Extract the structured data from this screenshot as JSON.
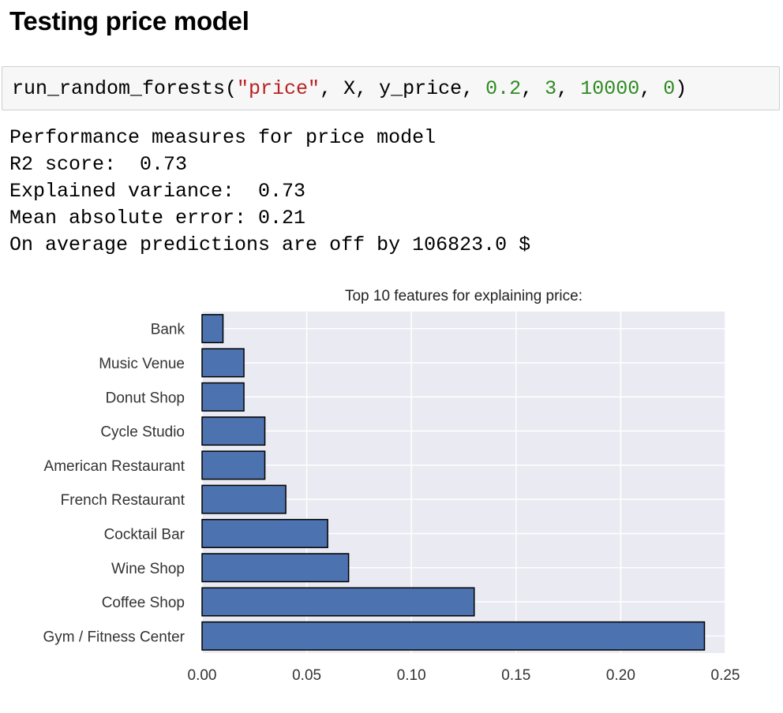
{
  "heading": "Testing price model",
  "code": {
    "tokens": [
      {
        "text": "run_random_forests(",
        "kind": "plain"
      },
      {
        "text": "\"price\"",
        "kind": "str"
      },
      {
        "text": ", X, y_price, ",
        "kind": "plain"
      },
      {
        "text": "0.2",
        "kind": "num"
      },
      {
        "text": ", ",
        "kind": "plain"
      },
      {
        "text": "3",
        "kind": "num"
      },
      {
        "text": ", ",
        "kind": "plain"
      },
      {
        "text": "10000",
        "kind": "num"
      },
      {
        "text": ", ",
        "kind": "plain"
      },
      {
        "text": "0",
        "kind": "num"
      },
      {
        "text": ")",
        "kind": "plain"
      }
    ]
  },
  "output": {
    "lines": [
      "Performance measures for price model",
      "R2 score:  0.73",
      "Explained variance:  0.73",
      "Mean absolute error: 0.21",
      "On average predictions are off by 106823.0 $"
    ]
  },
  "colors": {
    "bar_fill": "#4c72b0",
    "bar_stroke": "#000000",
    "plot_bg": "#eaeaf2",
    "grid": "#ffffff",
    "string": "#ba2121",
    "number": "#2e8b21"
  },
  "chart_data": {
    "type": "bar",
    "orientation": "horizontal",
    "title": "Top 10 features for explaining price:",
    "categories": [
      "Bank",
      "Music Venue",
      "Donut Shop",
      "Cycle Studio",
      "American Restaurant",
      "French Restaurant",
      "Cocktail Bar",
      "Wine Shop",
      "Coffee Shop",
      "Gym / Fitness Center"
    ],
    "values": [
      0.01,
      0.02,
      0.02,
      0.03,
      0.03,
      0.04,
      0.06,
      0.07,
      0.13,
      0.24
    ],
    "xlim": [
      0,
      0.25
    ],
    "xticks": [
      "0.00",
      "0.05",
      "0.10",
      "0.15",
      "0.20",
      "0.25"
    ],
    "xlabel": "",
    "ylabel": "",
    "grid": true,
    "legend": "none"
  }
}
